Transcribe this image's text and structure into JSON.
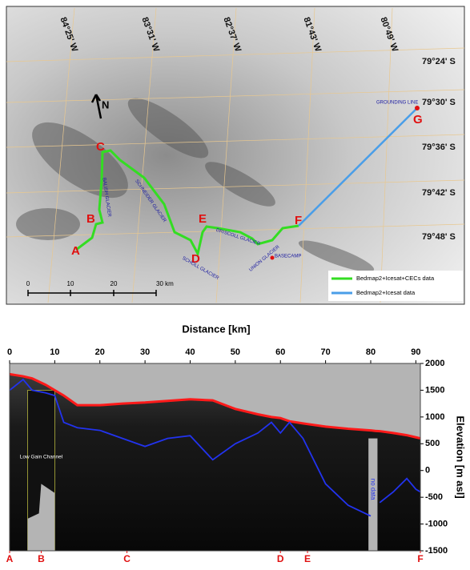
{
  "map": {
    "longitudes": [
      "84°25' W",
      "83°31' W",
      "82°37' W",
      "81°43' W",
      "80°49' W"
    ],
    "latitudes": [
      "79°24' S",
      "79°30' S",
      "79°36' S",
      "79°42' S",
      "79°48' S"
    ],
    "points": [
      "A",
      "B",
      "C",
      "D",
      "E",
      "F",
      "G"
    ],
    "glaciers": [
      "BALISH GLACIER",
      "SCHNEIDER GLACIER",
      "DRISCOLL GLACIER",
      "SCHOLL GLACIER",
      "UNION GLACIER"
    ],
    "places": [
      "BASECAMP",
      "GROUNDING LINE"
    ],
    "north": "N",
    "scale": {
      "ticks": [
        "0",
        "10",
        "20",
        "30 km"
      ]
    },
    "legend": [
      "Bedmap2+Icesat+CECs data",
      "Bedmap2+Icesat data"
    ]
  },
  "chart_data": {
    "type": "line",
    "xlabel": "Distance [km]",
    "ylabel": "Elevation [m asl]",
    "x": [
      0,
      3,
      5,
      8,
      10,
      12,
      15,
      20,
      25,
      30,
      35,
      40,
      45,
      50,
      55,
      58,
      60,
      62,
      65,
      70,
      75,
      80,
      81,
      82,
      85,
      88,
      90,
      91
    ],
    "series": [
      {
        "color": "#ff1a1a",
        "values": [
          1800,
          1760,
          1720,
          1600,
          1500,
          1400,
          1220,
          1220,
          1250,
          1270,
          1300,
          1330,
          1310,
          1150,
          1050,
          1000,
          980,
          920,
          880,
          820,
          780,
          750,
          740,
          735,
          700,
          660,
          620,
          600
        ]
      },
      {
        "color": "#2233ee",
        "values": [
          1500,
          1700,
          1500,
          1450,
          1400,
          900,
          800,
          750,
          600,
          450,
          600,
          650,
          200,
          500,
          700,
          900,
          700,
          900,
          600,
          -250,
          -650,
          -850,
          null,
          -600,
          -400,
          -150,
          -350,
          -400
        ]
      }
    ],
    "xlim": [
      0,
      91
    ],
    "ylim": [
      -1500,
      2000
    ],
    "xticks": [
      0,
      10,
      20,
      30,
      40,
      50,
      60,
      70,
      80,
      90
    ],
    "yticks": [
      2000,
      1500,
      1000,
      500,
      0,
      -500,
      -1000,
      -1500
    ],
    "profile_points": [
      {
        "label": "A",
        "x": 0
      },
      {
        "label": "B",
        "x": 7
      },
      {
        "label": "C",
        "x": 26
      },
      {
        "label": "D",
        "x": 60
      },
      {
        "label": "E",
        "x": 66
      },
      {
        "label": "F",
        "x": 91
      }
    ],
    "low_gain": {
      "label": "Low Gain Channel",
      "x": [
        4,
        10
      ]
    },
    "no_data": {
      "label": "no data",
      "x": [
        79.5,
        81.5
      ]
    }
  }
}
